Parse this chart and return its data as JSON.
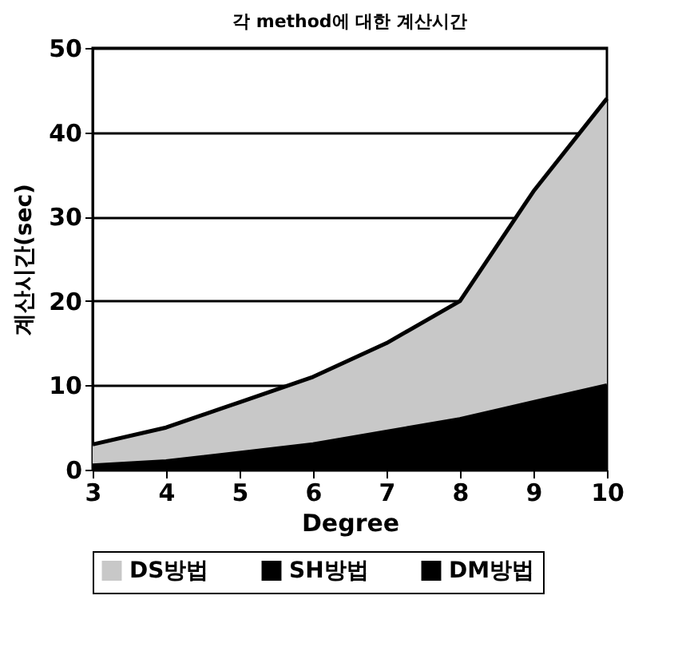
{
  "chart_data": {
    "type": "area",
    "title": "각 method에 대한 계산시간",
    "xlabel": "Degree",
    "ylabel": "계산시간(sec)",
    "x": [
      3,
      4,
      5,
      6,
      7,
      8,
      9,
      10
    ],
    "series": [
      {
        "name": "DS방법",
        "color": "#c8c8c8",
        "values": [
          3,
          5,
          8,
          11,
          15,
          20,
          33,
          44
        ]
      },
      {
        "name": "SH방법",
        "color": "#000000",
        "values": [
          0.5,
          1,
          2,
          3,
          4.5,
          6,
          8,
          10
        ]
      },
      {
        "name": "DM방법",
        "color": "#000000",
        "values": [
          null,
          null,
          null,
          null,
          null,
          null,
          null,
          null
        ]
      }
    ],
    "xlim": [
      3,
      10
    ],
    "xticks": [
      3,
      4,
      5,
      6,
      7,
      8,
      9,
      10
    ],
    "ylim": [
      0,
      50
    ],
    "yticks": [
      0,
      10,
      20,
      30,
      40,
      50
    ],
    "grid": "y",
    "legend": "bottom"
  }
}
